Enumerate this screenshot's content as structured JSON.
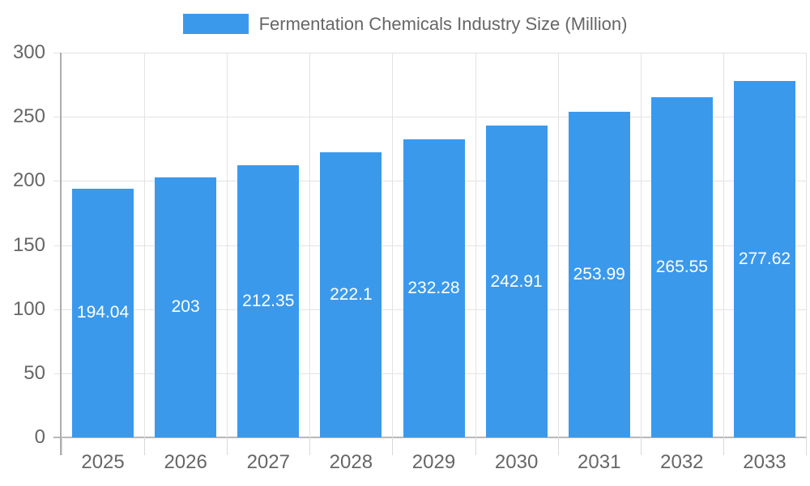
{
  "chart_data": {
    "type": "bar",
    "title": "Fermentation Chemicals Industry Size (Million)",
    "categories": [
      "2025",
      "2026",
      "2027",
      "2028",
      "2029",
      "2030",
      "2031",
      "2032",
      "2033"
    ],
    "values": [
      194.04,
      203,
      212.35,
      222.1,
      232.28,
      242.91,
      253.99,
      265.55,
      277.62
    ],
    "value_labels": [
      "194.04",
      "203",
      "212.35",
      "222.1",
      "232.28",
      "242.91",
      "253.99",
      "265.55",
      "277.62"
    ],
    "xlabel": "",
    "ylabel": "",
    "ylim": [
      0,
      300
    ],
    "yticks": [
      0,
      50,
      100,
      150,
      200,
      250,
      300
    ],
    "grid": true,
    "legend_position": "top",
    "bar_color": "#3B99EC",
    "bar_label_color": "#ffffff",
    "axis_text_color": "#666666",
    "gridline_color": "#e3e3e3",
    "axis_line_color": "#adadad",
    "zero_line_color": "#b8b8b8"
  }
}
